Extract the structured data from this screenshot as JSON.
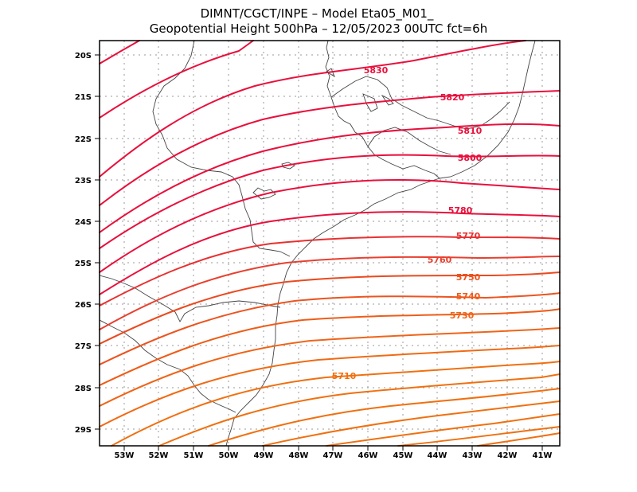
{
  "title": {
    "line1": "DIMNT/CGCT/INPE –  Model Eta05_M01_",
    "line2": "Geopotential Height 500hPa –  12/05/2023 00UTC fct=6h"
  },
  "axes": {
    "lon_labels": [
      "53W",
      "52W",
      "51W",
      "50W",
      "49W",
      "48W",
      "47W",
      "46W",
      "45W",
      "44W",
      "43W",
      "42W",
      "41W"
    ],
    "lat_labels": [
      "20S",
      "21S",
      "22S",
      "23S",
      "24S",
      "25S",
      "26S",
      "27S",
      "28S",
      "29S"
    ]
  },
  "contour_labels": [
    "5830",
    "5820",
    "5810",
    "5800",
    "5780",
    "5770",
    "5760",
    "5750",
    "5740",
    "5730",
    "5710"
  ],
  "colors": {
    "frame": "#000000",
    "grid": "#9a9a9a",
    "coast": "#444444",
    "contour_high": "#e8103c",
    "contour_low": "#f07010"
  }
}
